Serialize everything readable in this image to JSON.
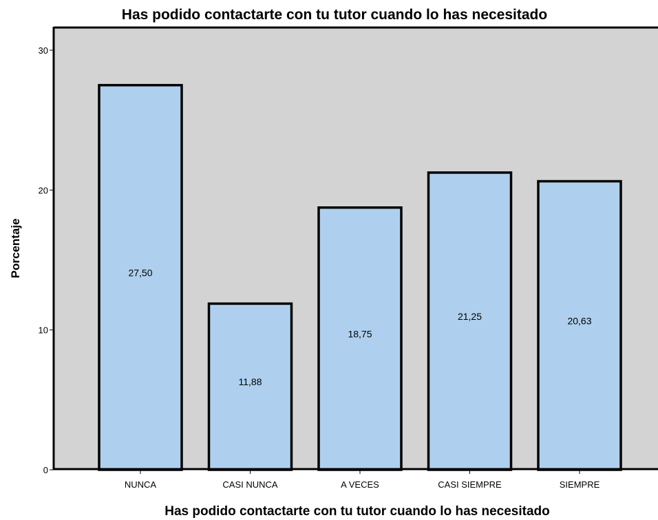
{
  "chart_data": {
    "type": "bar",
    "title": "Has podido contactarte con tu tutor cuando lo has necesitado",
    "xlabel": "Has podido contactarte con tu tutor cuando lo has necesitado",
    "ylabel": "Porcentaje",
    "categories": [
      "NUNCA",
      "CASI NUNCA",
      "A VECES",
      "CASI SIEMPRE",
      "SIEMPRE"
    ],
    "values": [
      27.5,
      11.88,
      18.75,
      21.25,
      20.63
    ],
    "data_labels": [
      "27,50",
      "11,88",
      "18,75",
      "21,25",
      "20,63"
    ],
    "ylim": [
      0,
      30
    ],
    "yticks": [
      "0",
      "10",
      "20",
      "30"
    ],
    "grid": false,
    "colors": {
      "plot_background": "#d3d3d3",
      "bar_fill": "#aed0ee",
      "bar_stroke": "#000000"
    }
  }
}
